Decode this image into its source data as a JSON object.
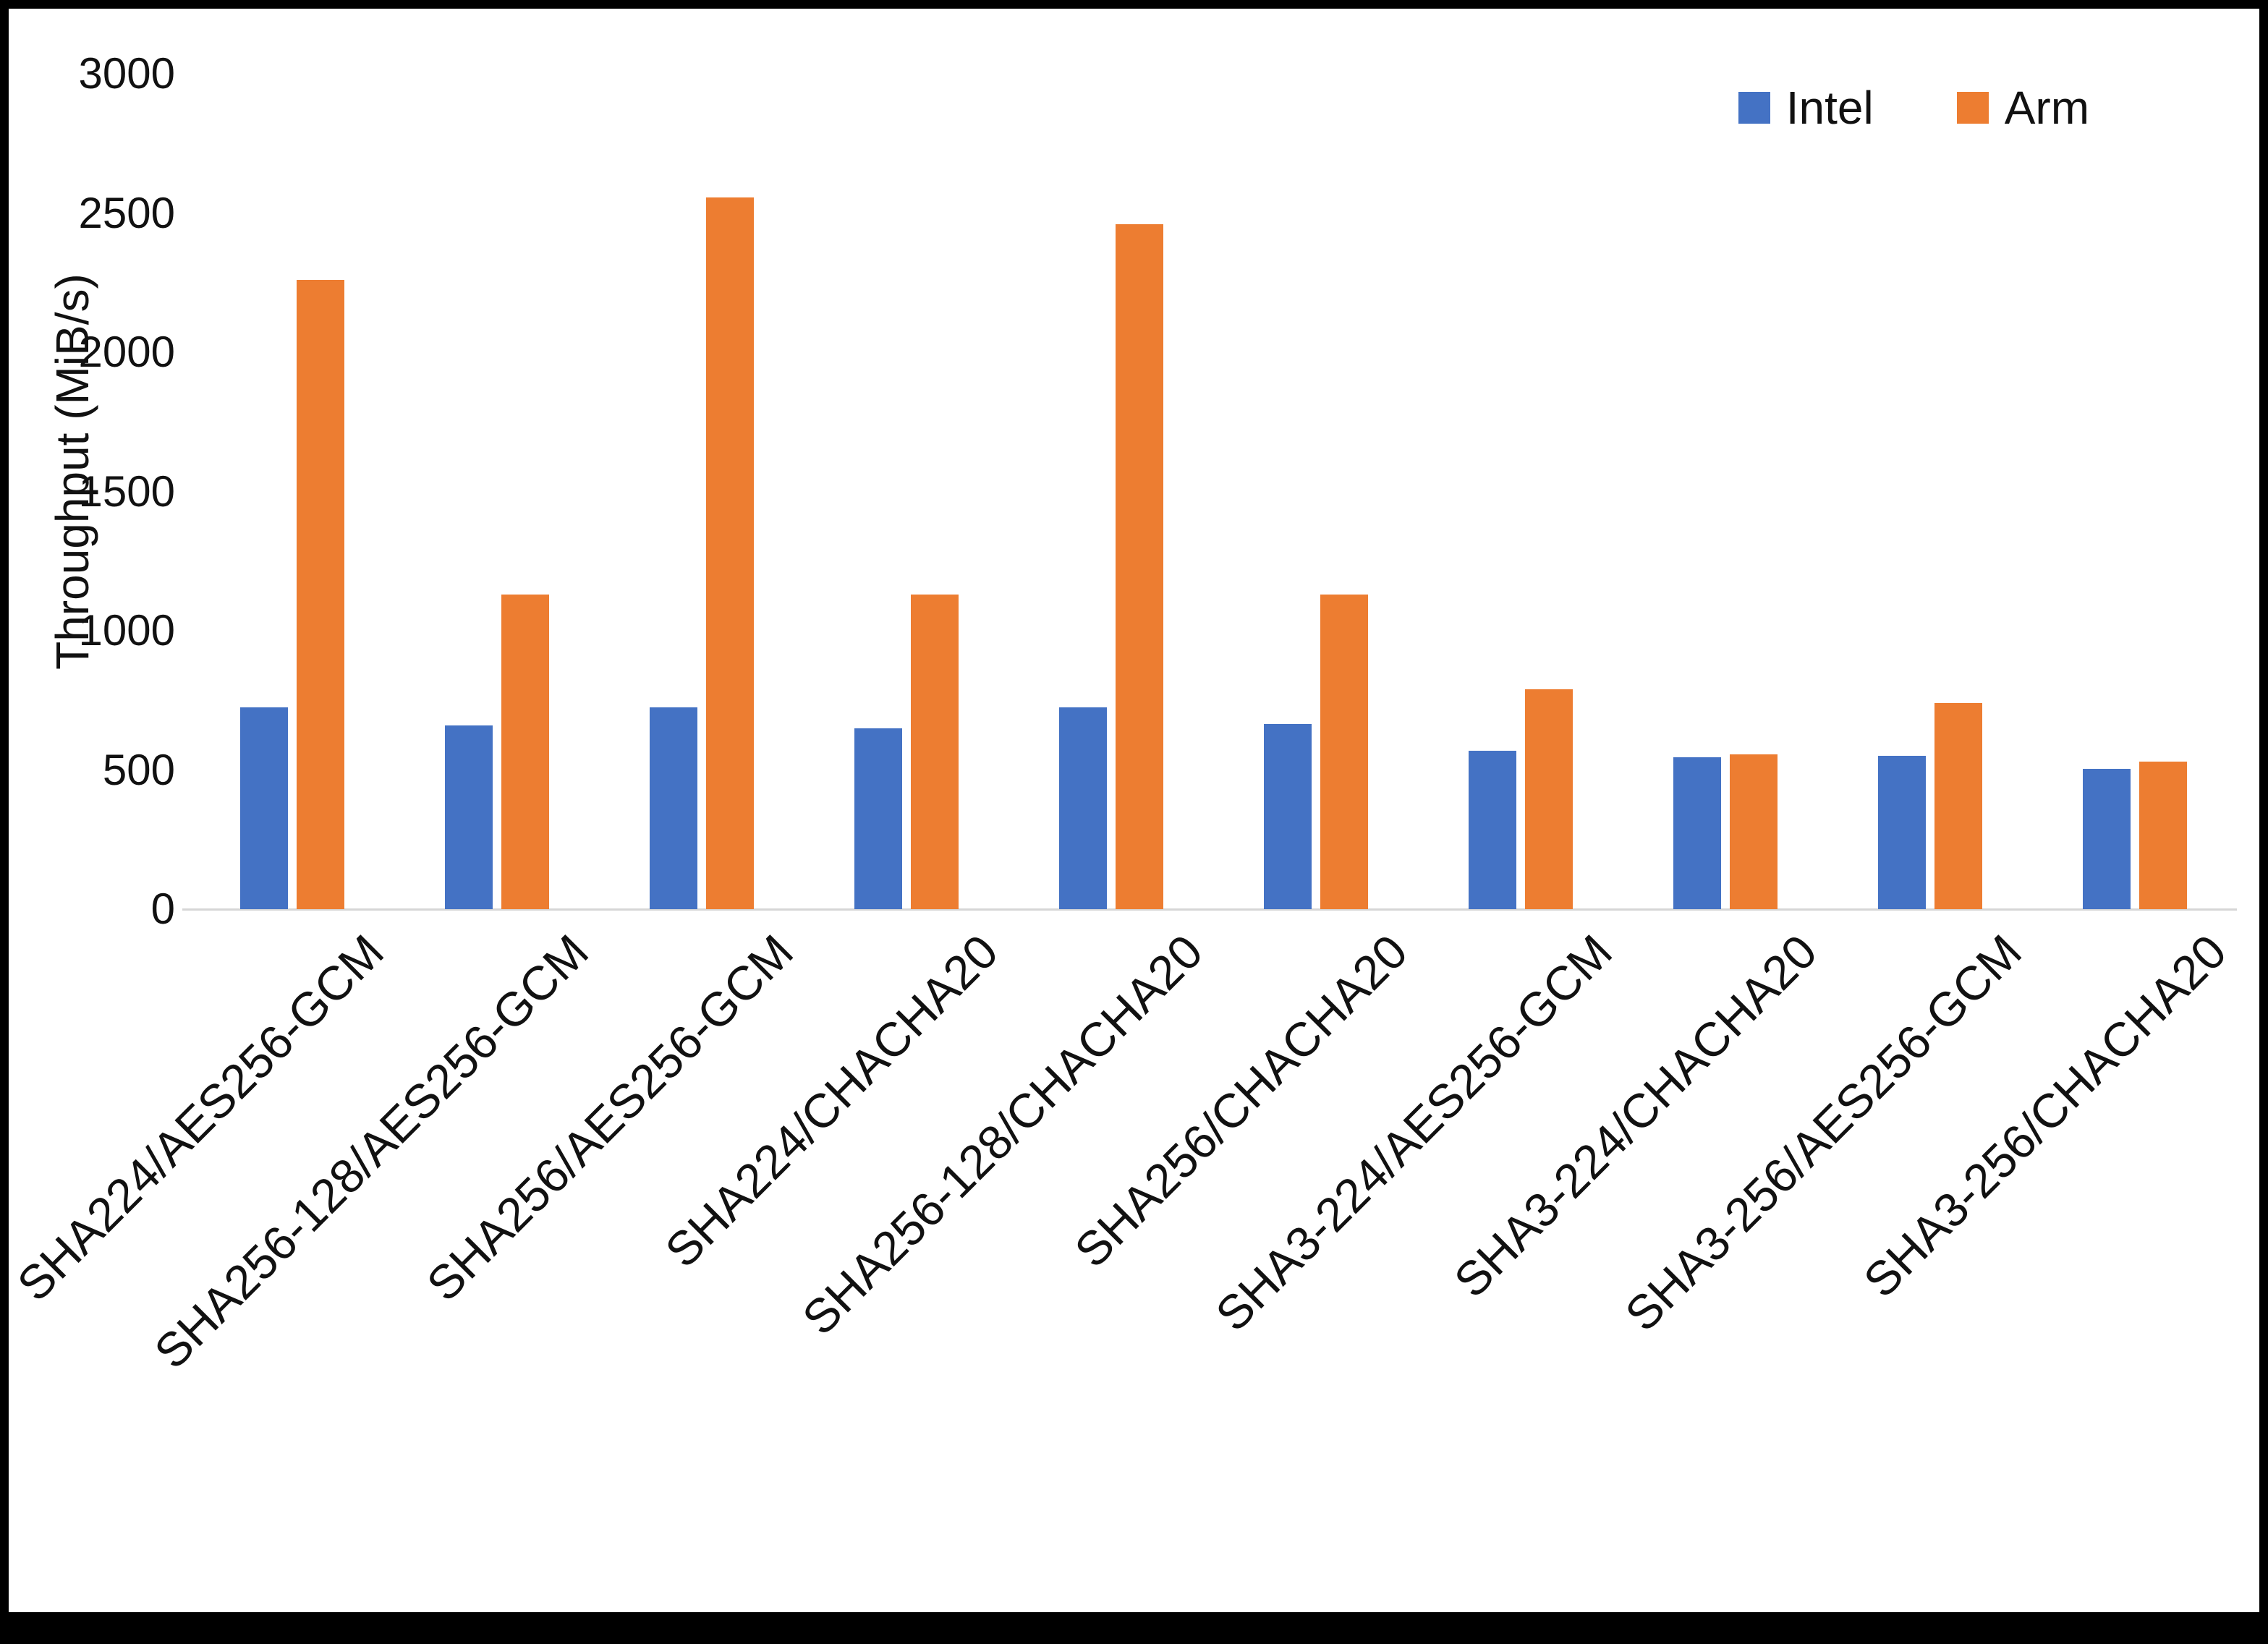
{
  "chart_data": {
    "type": "bar",
    "title": "",
    "xlabel": "",
    "ylabel": "Throughput (MiB/s)",
    "ylim": [
      0,
      3000
    ],
    "yticks": [
      0,
      500,
      1000,
      1500,
      2000,
      2500,
      3000
    ],
    "grid": false,
    "legend_position": "top-right",
    "categories": [
      "SHA224/AES256-GCM",
      "SHA256-128/AES256-GCM",
      "SHA256/AES256-GCM",
      "SHA224/CHACHA20",
      "SHA256-128/CHACHA20",
      "SHA256/CHACHA20",
      "SHA3-224/AES256-GCM",
      "SHA3-224/CHACHA20",
      "SHA3-256/AES256-GCM",
      "SHA3-256/CHACHA20"
    ],
    "series": [
      {
        "name": "Intel",
        "color": "#4472C4",
        "values": [
          725,
          660,
          725,
          650,
          725,
          665,
          570,
          545,
          550,
          505
        ]
      },
      {
        "name": "Arm",
        "color": "#ED7D31",
        "values": [
          2260,
          1130,
          2555,
          1130,
          2460,
          1130,
          790,
          555,
          740,
          530
        ]
      }
    ]
  }
}
